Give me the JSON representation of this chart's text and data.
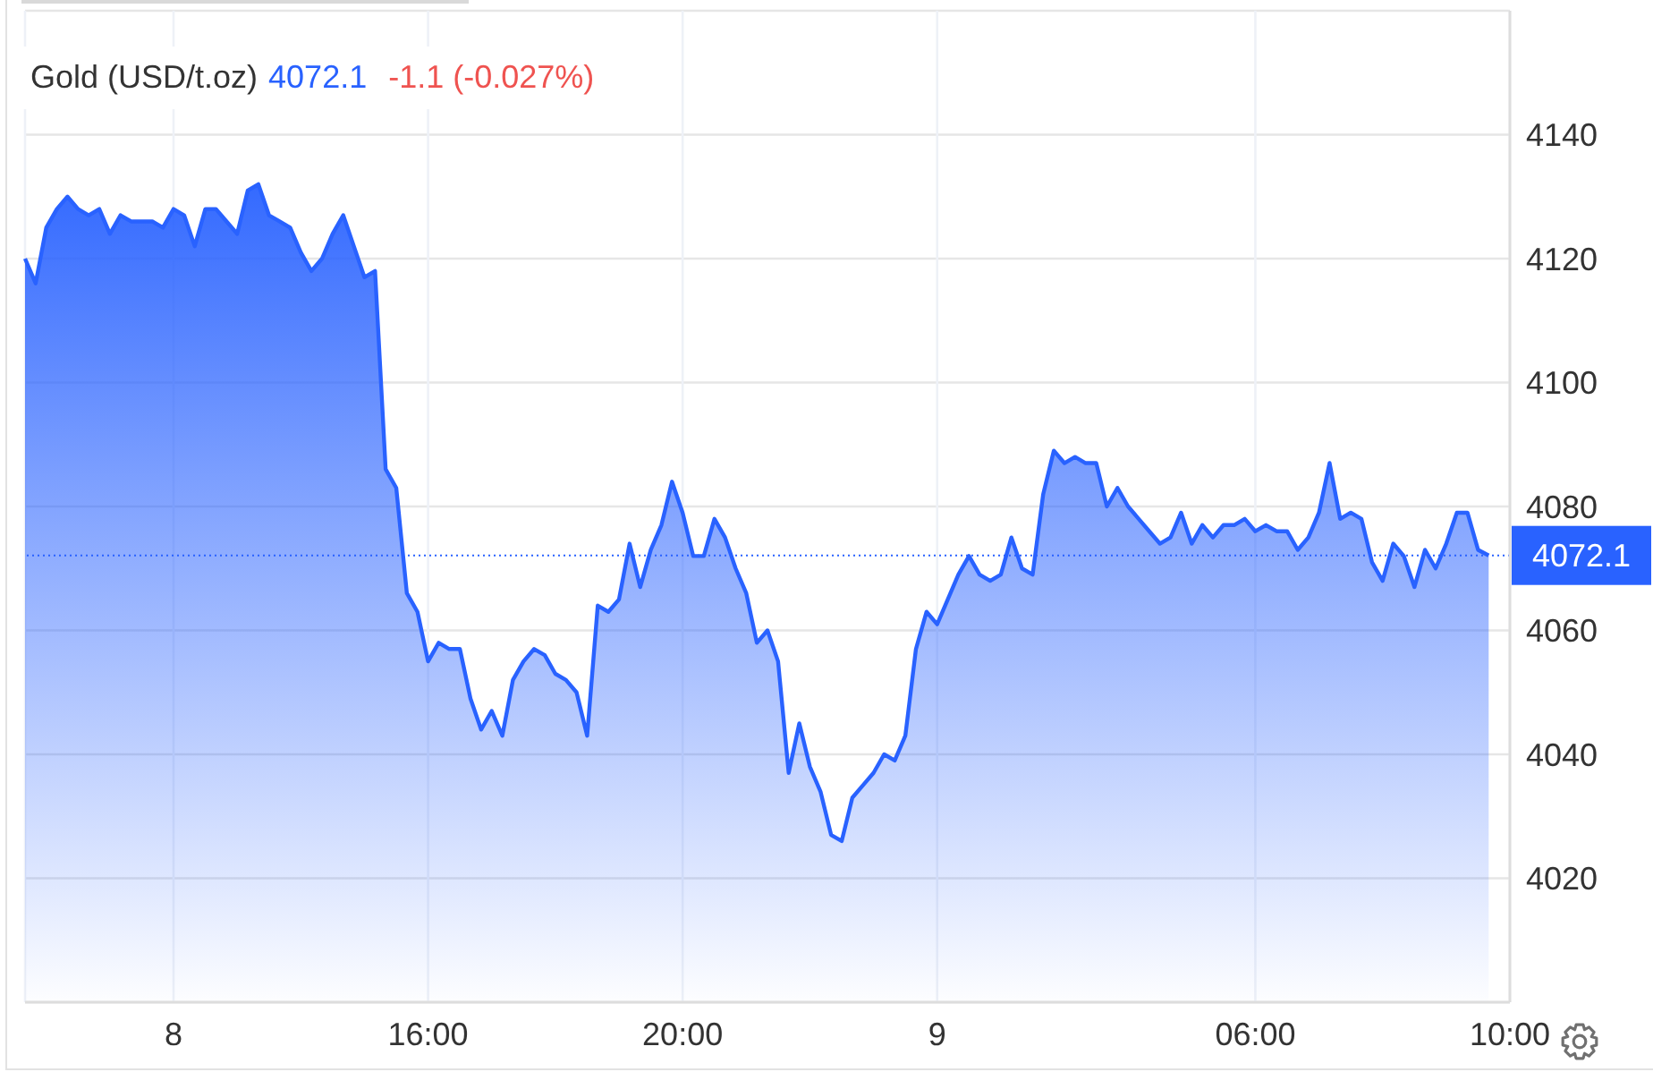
{
  "chart_data": {
    "type": "area",
    "title": "Gold (USD/t.oz)",
    "annotations": [
      "4072.1",
      "-1.1 (-0.027%)"
    ],
    "categories": [
      null,
      null,
      null,
      null,
      null,
      null,
      null,
      null,
      null,
      null,
      null,
      null,
      null,
      null,
      "8",
      null,
      null,
      null,
      null,
      null,
      null,
      null,
      null,
      null,
      null,
      null,
      null,
      null,
      null,
      null,
      null,
      null,
      null,
      null,
      null,
      null,
      null,
      null,
      "16:00",
      null,
      null,
      null,
      null,
      null,
      null,
      null,
      null,
      null,
      null,
      null,
      null,
      null,
      null,
      null,
      null,
      null,
      null,
      null,
      null,
      null,
      null,
      null,
      "20:00",
      null,
      null,
      null,
      null,
      null,
      null,
      null,
      null,
      null,
      null,
      null,
      null,
      null,
      null,
      null,
      null,
      null,
      null,
      null,
      null,
      null,
      null,
      null,
      "9",
      null,
      null,
      null,
      null,
      null,
      null,
      null,
      null,
      null,
      null,
      null,
      null,
      null,
      null,
      null,
      null,
      null,
      null,
      null,
      null,
      null,
      null,
      null,
      null,
      null,
      null,
      null,
      null,
      null,
      "06:00",
      null,
      null,
      null,
      null,
      null,
      null,
      null,
      null,
      null,
      null,
      null,
      null,
      null,
      null,
      null,
      null,
      null,
      null,
      null,
      null,
      null,
      null,
      null,
      "10:00"
    ],
    "values": [
      4120,
      4116,
      4125,
      4128,
      4130,
      4128,
      4127,
      4128,
      4124,
      4127,
      4126,
      4126,
      4126,
      4125,
      4128,
      4127,
      4122,
      4128,
      4128,
      4126,
      4124,
      4131,
      4132,
      4127,
      4126,
      4125,
      4121,
      4118,
      4120,
      4124,
      4127,
      4122,
      4117,
      4118,
      4086,
      4083,
      4066,
      4063,
      4055,
      4058,
      4057,
      4057,
      4049,
      4044,
      4047,
      4043,
      4052,
      4055,
      4057,
      4056,
      4053,
      4052,
      4050,
      4043,
      4064,
      4063,
      4065,
      4074,
      4067,
      4073,
      4077,
      4084,
      4079,
      4072,
      4072,
      4078,
      4075,
      4070,
      4066,
      4058,
      4060,
      4055,
      4037,
      4045,
      4038,
      4034,
      4027,
      4026,
      4033,
      4035,
      4037,
      4040,
      4039,
      4043,
      4057,
      4063,
      4061,
      4065,
      4069,
      4072,
      4069,
      4068,
      4069,
      4075,
      4070,
      4069,
      4082,
      4089,
      4087,
      4088,
      4087,
      4087,
      4080,
      4083,
      4080,
      4078,
      4076,
      4074,
      4075,
      4079,
      4074,
      4077,
      4075,
      4077,
      4077,
      4078,
      4076,
      4077,
      4076,
      4076,
      4073,
      4075,
      4079,
      4087,
      4078,
      4079,
      4078,
      4071,
      4068,
      4074,
      4072,
      4067,
      4073,
      4070,
      4074,
      4079,
      4079,
      4073,
      4072.1,
      null,
      null
    ],
    "color": "#2962ff",
    "ylim": [
      4000,
      4160
    ],
    "yticks": [
      4020,
      4040,
      4060,
      4080,
      4100,
      4120,
      4140
    ],
    "grid": true,
    "ref_lines": [
      {
        "axis": "y",
        "value": 4072.1,
        "label": "4072.1",
        "color": "#2962ff",
        "line_style": "dotted"
      }
    ]
  }
}
